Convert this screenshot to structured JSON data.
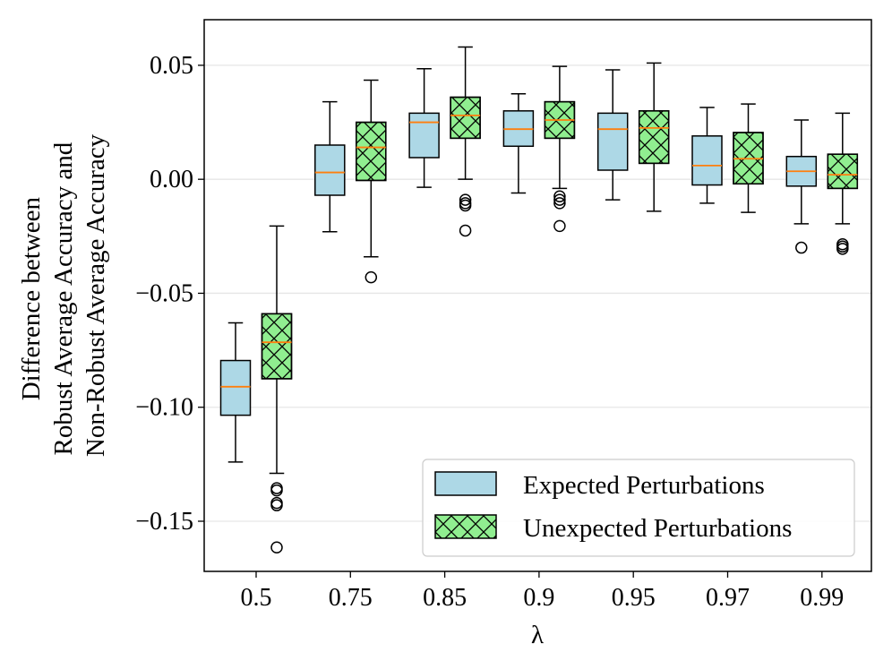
{
  "chart_data": {
    "type": "box",
    "title": "",
    "xlabel": "λ",
    "ylabel_lines": [
      "Difference between",
      "Robust Average Accuracy and",
      "Non-Robust Average Accuracy"
    ],
    "categories": [
      "0.5",
      "0.75",
      "0.85",
      "0.9",
      "0.95",
      "0.97",
      "0.99"
    ],
    "ylim": [
      -0.172,
      0.07
    ],
    "yticks": [
      0.05,
      0.0,
      -0.05,
      -0.1,
      -0.15
    ],
    "ytick_labels": [
      "0.05",
      "0.00",
      "−0.05",
      "−0.10",
      "−0.15"
    ],
    "grid": "horizontal",
    "legend_position": "bottom-right",
    "colors": {
      "expected_fill": "#add8e6",
      "unexpected_fill": "#90ee90",
      "median": "#ff7f0e",
      "grid": "#e6e6e6",
      "edge": "#000000"
    },
    "series": [
      {
        "name": "Expected Perturbations",
        "hatch": "none",
        "boxes": [
          {
            "whislo": -0.124,
            "q1": -0.1035,
            "med": -0.091,
            "q3": -0.0795,
            "whishi": -0.063,
            "fliers": []
          },
          {
            "whislo": -0.023,
            "q1": -0.007,
            "med": 0.003,
            "q3": 0.015,
            "whishi": 0.034,
            "fliers": []
          },
          {
            "whislo": -0.0035,
            "q1": 0.0095,
            "med": 0.025,
            "q3": 0.029,
            "whishi": 0.0485,
            "fliers": []
          },
          {
            "whislo": -0.006,
            "q1": 0.0145,
            "med": 0.022,
            "q3": 0.03,
            "whishi": 0.0375,
            "fliers": []
          },
          {
            "whislo": -0.009,
            "q1": 0.004,
            "med": 0.022,
            "q3": 0.029,
            "whishi": 0.048,
            "fliers": []
          },
          {
            "whislo": -0.0105,
            "q1": -0.0025,
            "med": 0.006,
            "q3": 0.019,
            "whishi": 0.0315,
            "fliers": []
          },
          {
            "whislo": -0.0195,
            "q1": -0.003,
            "med": 0.0035,
            "q3": 0.01,
            "whishi": 0.026,
            "fliers": [
              -0.03
            ]
          }
        ]
      },
      {
        "name": "Unexpected Perturbations",
        "hatch": "cross",
        "boxes": [
          {
            "whislo": -0.129,
            "q1": -0.0875,
            "med": -0.0715,
            "q3": -0.059,
            "whishi": -0.0205,
            "fliers": [
              -0.1355,
              -0.1365,
              -0.142,
              -0.143,
              -0.1615
            ]
          },
          {
            "whislo": -0.034,
            "q1": -0.0005,
            "med": 0.014,
            "q3": 0.025,
            "whishi": 0.0435,
            "fliers": [
              -0.043
            ]
          },
          {
            "whislo": 0.0,
            "q1": 0.018,
            "med": 0.028,
            "q3": 0.036,
            "whishi": 0.058,
            "fliers": [
              -0.009,
              -0.0105,
              -0.0115,
              -0.0225
            ]
          },
          {
            "whislo": -0.004,
            "q1": 0.018,
            "med": 0.026,
            "q3": 0.034,
            "whishi": 0.0495,
            "fliers": [
              -0.0075,
              -0.009,
              -0.0105,
              -0.0205
            ]
          },
          {
            "whislo": -0.014,
            "q1": 0.007,
            "med": 0.0225,
            "q3": 0.03,
            "whishi": 0.051,
            "fliers": []
          },
          {
            "whislo": -0.0145,
            "q1": -0.002,
            "med": 0.009,
            "q3": 0.0205,
            "whishi": 0.033,
            "fliers": []
          },
          {
            "whislo": -0.0195,
            "q1": -0.004,
            "med": 0.002,
            "q3": 0.011,
            "whishi": 0.029,
            "fliers": [
              -0.0285,
              -0.0295,
              -0.0305
            ]
          }
        ]
      }
    ]
  }
}
